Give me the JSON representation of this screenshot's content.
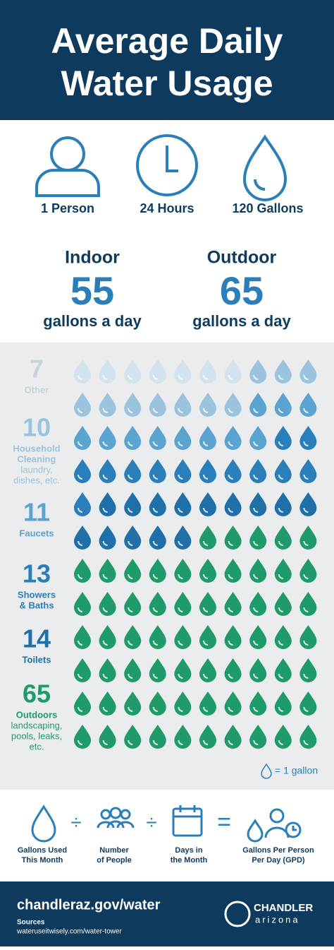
{
  "header": {
    "title": [
      "Average Daily",
      "Water Usage"
    ]
  },
  "summary": [
    "1 Person",
    "24 Hours",
    "120 Gallons"
  ],
  "usage": [
    {
      "label": "Indoor",
      "value": 55,
      "unit": "gallons a day"
    },
    {
      "label": "Outdoor",
      "value": 65,
      "unit": "gallons a day"
    }
  ],
  "categories": [
    {
      "value": 7,
      "label": [
        "Other"
      ],
      "color": "#d3e2ec"
    },
    {
      "value": 10,
      "label": [
        "Household",
        "Cleaning"
      ],
      "detail": [
        "laundry,",
        "dishes, etc."
      ],
      "color": "#9cc3dd"
    },
    {
      "value": 11,
      "label": [
        "Faucets"
      ],
      "color": "#5ba3d0"
    },
    {
      "value": 13,
      "label": [
        "Showers",
        "& Baths"
      ],
      "color": "#2a7fba"
    },
    {
      "value": 14,
      "label": [
        "Toilets"
      ],
      "color": "#1f6fa8"
    },
    {
      "value": 65,
      "label": [
        "Outdoors"
      ],
      "detail": [
        "landscaping,",
        "pools, leaks,",
        "etc."
      ],
      "color": "#1f9a6a"
    }
  ],
  "legend": "= 1 gallon",
  "formula": [
    [
      "Gallons Used",
      "This Month"
    ],
    [
      "Number",
      "of People"
    ],
    [
      "Days in",
      "the Month"
    ],
    [
      "Gallons Per Person",
      "Per Day (GPD)"
    ]
  ],
  "footer": {
    "url": "chandleraz.gov/water",
    "sources_label": "Sources",
    "source": "wateruseitwisely.com/water-tower",
    "logo": [
      "CHANDLER",
      "arizona"
    ]
  }
}
